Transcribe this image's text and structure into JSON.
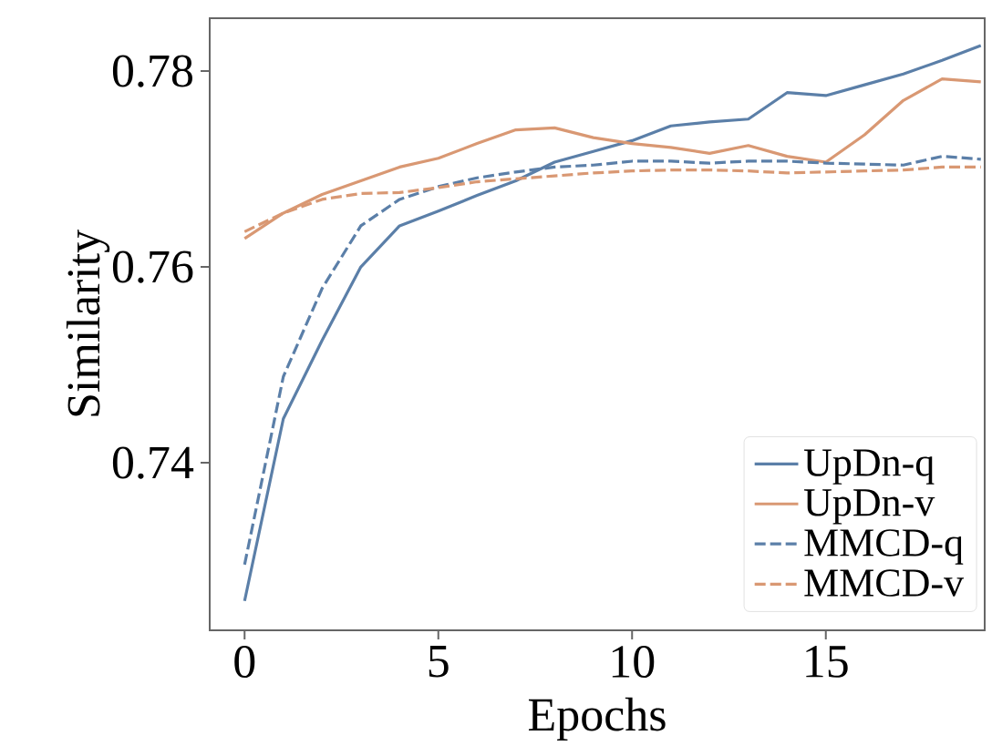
{
  "chart_data": {
    "type": "line",
    "xlabel": "Epochs",
    "ylabel": "Similarity",
    "x": [
      0,
      1,
      2,
      3,
      4,
      5,
      6,
      7,
      8,
      9,
      10,
      11,
      12,
      13,
      14,
      15,
      16,
      17,
      18,
      19
    ],
    "xlim": [
      -0.9,
      19.1
    ],
    "ylim": [
      0.7229,
      0.7854
    ],
    "xticks": [
      0,
      5,
      10,
      15
    ],
    "yticks": [
      0.74,
      0.76,
      0.78
    ],
    "legend": "bottom right",
    "series": [
      {
        "name": "UpDn-q",
        "color": "#5b7fa8",
        "line_style": "solid",
        "values": [
          0.7259,
          0.7445,
          0.7525,
          0.76,
          0.7642,
          0.7657,
          0.7673,
          0.7688,
          0.7707,
          0.7718,
          0.7729,
          0.7744,
          0.7748,
          0.7751,
          0.7778,
          0.7775,
          0.7786,
          0.7797,
          0.7811,
          0.7826
        ]
      },
      {
        "name": "UpDn-v",
        "color": "#d99873",
        "line_style": "solid",
        "values": [
          0.7629,
          0.7655,
          0.7674,
          0.7688,
          0.7702,
          0.7711,
          0.7726,
          0.774,
          0.7742,
          0.7732,
          0.7726,
          0.7722,
          0.7716,
          0.7724,
          0.7713,
          0.7707,
          0.7735,
          0.777,
          0.7792,
          0.7789
        ]
      },
      {
        "name": "MMCD-q",
        "color": "#5b7fa8",
        "line_style": "dashed",
        "values": [
          0.7296,
          0.7488,
          0.7578,
          0.7642,
          0.7669,
          0.7682,
          0.7691,
          0.7697,
          0.7702,
          0.7704,
          0.7708,
          0.7708,
          0.7706,
          0.7708,
          0.7708,
          0.7706,
          0.7705,
          0.7704,
          0.7713,
          0.771
        ]
      },
      {
        "name": "MMCD-v",
        "color": "#d99873",
        "line_style": "dashed",
        "values": [
          0.7636,
          0.7655,
          0.7669,
          0.7675,
          0.7676,
          0.7681,
          0.7687,
          0.769,
          0.7693,
          0.7696,
          0.7698,
          0.7699,
          0.7699,
          0.7698,
          0.7696,
          0.7697,
          0.7698,
          0.7699,
          0.7702,
          0.7702
        ]
      }
    ]
  }
}
